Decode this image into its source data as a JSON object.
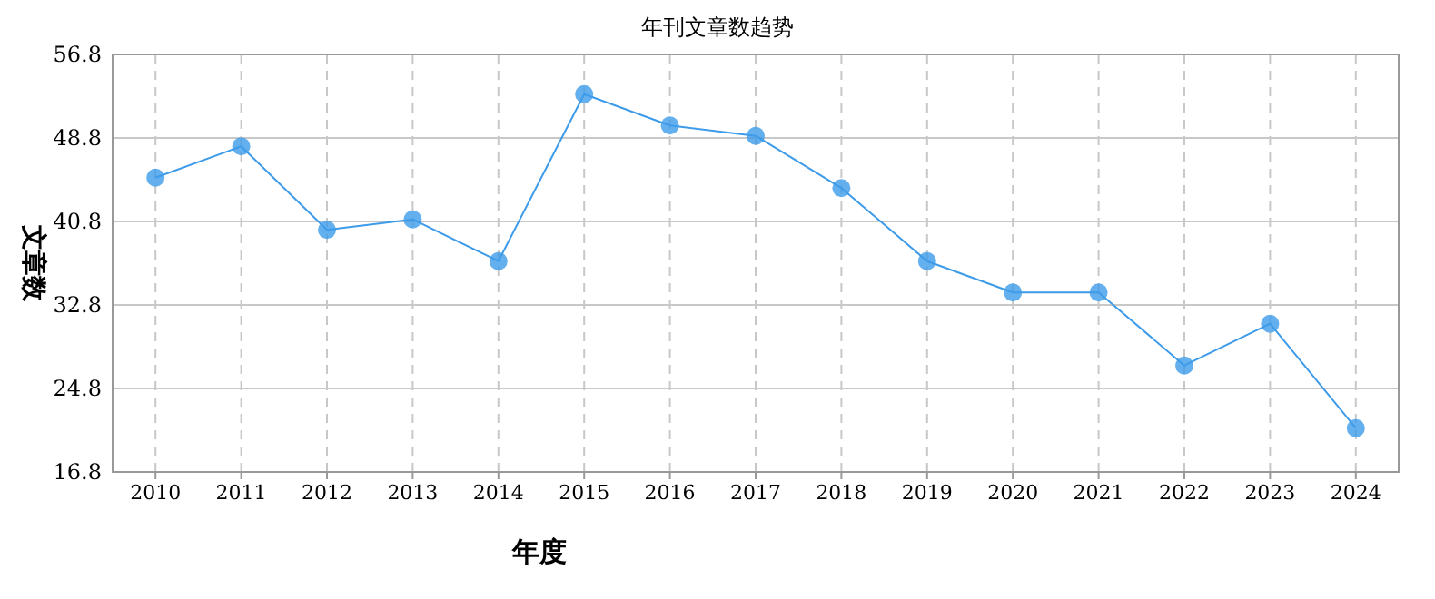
{
  "chart_data": {
    "type": "line",
    "title": "年刊文章数趋势",
    "xlabel": "年度",
    "ylabel": "文章数",
    "categories": [
      "2010",
      "2011",
      "2012",
      "2013",
      "2014",
      "2015",
      "2016",
      "2017",
      "2018",
      "2019",
      "2020",
      "2021",
      "2022",
      "2023",
      "2024"
    ],
    "series": [
      {
        "color": "#3d9be9",
        "values": [
          45,
          48,
          40,
          41,
          37,
          53,
          50,
          49,
          44,
          37,
          34,
          34,
          27,
          31,
          21
        ]
      }
    ],
    "ylim": [
      16.8,
      56.8
    ],
    "yticks": [
      16.8,
      24.8,
      32.8,
      40.8,
      48.8,
      56.8
    ],
    "grid": true,
    "marker": "circle",
    "line_style": "solid"
  }
}
